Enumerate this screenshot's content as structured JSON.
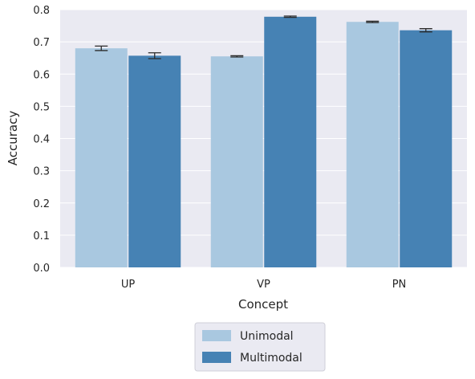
{
  "chart_data": {
    "type": "bar",
    "title": "",
    "xlabel": "Concept",
    "ylabel": "Accuracy",
    "categories": [
      "UP",
      "VP",
      "PN"
    ],
    "series": [
      {
        "name": "Unimodal",
        "color": "#a9c8e0",
        "values": [
          0.68,
          0.655,
          0.762
        ],
        "errors": [
          0.007,
          0.002,
          0.002
        ]
      },
      {
        "name": "Multimodal",
        "color": "#4682b4",
        "values": [
          0.657,
          0.778,
          0.736
        ],
        "errors": [
          0.009,
          0.002,
          0.005
        ]
      }
    ],
    "ylim": [
      0,
      0.8
    ],
    "yticks": [
      0,
      0.1,
      0.2,
      0.3,
      0.4,
      0.5,
      0.6,
      0.7,
      0.8
    ],
    "ytick_labels": [
      "0.0",
      "0.1",
      "0.2",
      "0.3",
      "0.4",
      "0.5",
      "0.6",
      "0.7",
      "0.8"
    ],
    "grid": true,
    "legend_position": "bottom-center",
    "background": "#eaeaf2"
  }
}
